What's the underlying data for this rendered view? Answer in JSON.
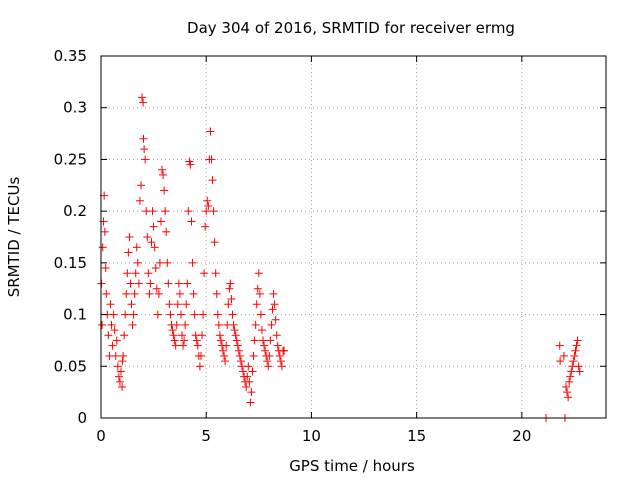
{
  "chart_data": {
    "type": "scatter",
    "title": "Day 304 of 2016, SRMTID for receiver ermg",
    "xlabel": "GPS time / hours",
    "ylabel": "SRMTID / TECUs",
    "xlim": [
      0,
      24
    ],
    "ylim": [
      0,
      0.35
    ],
    "xticks": [
      0,
      5,
      10,
      15,
      20
    ],
    "yticks": [
      0,
      0.05,
      0.1,
      0.15,
      0.2,
      0.25,
      0.3,
      0.35
    ],
    "xtick_labels": [
      "0",
      "5",
      "10",
      "15",
      "20"
    ],
    "ytick_labels": [
      "0",
      "0.05",
      "0.1",
      "0.15",
      "0.2",
      "0.25",
      "0.3",
      "0.35"
    ],
    "grid": true,
    "marker": "+",
    "color": "#ff0000",
    "series": [
      {
        "x": [
          0.02,
          0.05,
          0.08,
          0.12,
          0.15,
          0.18,
          0.22,
          0.25,
          0.3,
          0.35,
          0.4,
          0.45,
          0.5,
          0.55,
          0.6,
          0.65,
          0.7,
          0.75,
          0.8,
          0.85,
          0.9,
          0.95,
          1.0,
          1.02,
          1.05,
          1.1,
          1.15,
          1.2,
          1.25,
          1.3,
          1.35,
          1.4,
          1.45,
          1.5,
          1.55,
          1.6,
          1.65,
          1.7,
          1.75,
          1.8,
          1.85,
          1.9,
          1.95,
          2.0,
          2.02,
          2.05,
          2.1,
          2.15,
          2.2,
          2.25,
          2.3,
          2.35,
          2.4,
          2.45,
          2.5,
          2.55,
          2.6,
          2.65,
          2.7,
          2.75,
          2.8,
          2.85,
          2.9,
          2.95,
          3.0,
          3.05,
          3.1,
          3.15,
          3.2,
          3.25,
          3.3,
          3.35,
          3.4,
          3.45,
          3.5,
          3.55,
          3.6,
          3.65,
          3.7,
          3.75,
          3.8,
          3.85,
          3.9,
          3.95,
          4.0,
          4.05,
          4.1,
          4.15,
          4.2,
          4.25,
          4.3,
          4.35,
          4.4,
          4.45,
          4.5,
          4.55,
          4.6,
          4.65,
          4.7,
          4.75,
          4.8,
          4.85,
          4.9,
          4.95,
          5.0,
          5.05,
          5.1,
          5.15,
          5.2,
          5.25,
          5.3,
          5.35,
          5.4,
          5.45,
          5.5,
          5.55,
          5.6,
          5.65,
          5.7,
          5.75,
          5.8,
          5.85,
          5.9,
          5.95,
          6.0,
          6.05,
          6.1,
          6.15,
          6.2,
          6.25,
          6.3,
          6.35,
          6.4,
          6.45,
          6.5,
          6.55,
          6.6,
          6.65,
          6.7,
          6.75,
          6.8,
          6.85,
          6.9,
          6.95,
          7.0,
          7.05,
          7.1,
          7.15,
          7.2,
          7.25,
          7.3,
          7.35,
          7.4,
          7.45,
          7.5,
          7.55,
          7.6,
          7.65,
          7.7,
          7.75,
          7.8,
          7.85,
          7.9,
          7.95,
          8.0,
          8.05,
          8.1,
          8.15,
          8.2,
          8.25,
          8.3,
          8.35,
          8.4,
          8.45,
          8.5,
          8.55,
          8.6,
          8.65,
          8.7,
          21.15,
          21.8,
          21.82,
          22.0,
          22.05,
          22.1,
          22.15,
          22.2,
          22.25,
          22.3,
          22.35,
          22.4,
          22.45,
          22.5,
          22.55,
          22.6,
          22.65,
          22.7,
          22.75
        ],
        "y": [
          0.13,
          0.09,
          0.165,
          0.19,
          0.215,
          0.18,
          0.145,
          0.12,
          0.1,
          0.08,
          0.06,
          0.11,
          0.09,
          0.07,
          0.1,
          0.085,
          0.06,
          0.075,
          0.05,
          0.04,
          0.035,
          0.045,
          0.03,
          0.055,
          0.06,
          0.08,
          0.1,
          0.12,
          0.14,
          0.16,
          0.175,
          0.13,
          0.11,
          0.09,
          0.1,
          0.12,
          0.14,
          0.165,
          0.15,
          0.13,
          0.21,
          0.225,
          0.31,
          0.305,
          0.27,
          0.26,
          0.25,
          0.2,
          0.175,
          0.14,
          0.12,
          0.13,
          0.17,
          0.2,
          0.185,
          0.165,
          0.145,
          0.125,
          0.1,
          0.12,
          0.15,
          0.19,
          0.24,
          0.235,
          0.22,
          0.2,
          0.18,
          0.15,
          0.13,
          0.11,
          0.1,
          0.09,
          0.085,
          0.08,
          0.075,
          0.07,
          0.09,
          0.11,
          0.13,
          0.12,
          0.1,
          0.08,
          0.07,
          0.075,
          0.09,
          0.11,
          0.13,
          0.2,
          0.248,
          0.245,
          0.19,
          0.15,
          0.12,
          0.1,
          0.08,
          0.075,
          0.07,
          0.06,
          0.05,
          0.06,
          0.08,
          0.1,
          0.14,
          0.185,
          0.2,
          0.21,
          0.205,
          0.25,
          0.277,
          0.25,
          0.23,
          0.2,
          0.17,
          0.14,
          0.12,
          0.1,
          0.09,
          0.08,
          0.075,
          0.07,
          0.065,
          0.06,
          0.055,
          0.07,
          0.09,
          0.11,
          0.125,
          0.13,
          0.115,
          0.1,
          0.09,
          0.085,
          0.08,
          0.075,
          0.07,
          0.065,
          0.06,
          0.055,
          0.05,
          0.045,
          0.04,
          0.035,
          0.03,
          0.04,
          0.05,
          0.035,
          0.015,
          0.025,
          0.045,
          0.06,
          0.075,
          0.09,
          0.11,
          0.125,
          0.14,
          0.12,
          0.1,
          0.085,
          0.075,
          0.07,
          0.065,
          0.06,
          0.055,
          0.05,
          0.06,
          0.075,
          0.09,
          0.105,
          0.12,
          0.11,
          0.095,
          0.08,
          0.07,
          0.065,
          0.06,
          0.055,
          0.05,
          0.065,
          0.065,
          0.0,
          0.07,
          0.055,
          0.06,
          0.0,
          0.03,
          0.025,
          0.02,
          0.035,
          0.04,
          0.045,
          0.05,
          0.055,
          0.06,
          0.065,
          0.07,
          0.075,
          0.05,
          0.045
        ]
      }
    ]
  }
}
